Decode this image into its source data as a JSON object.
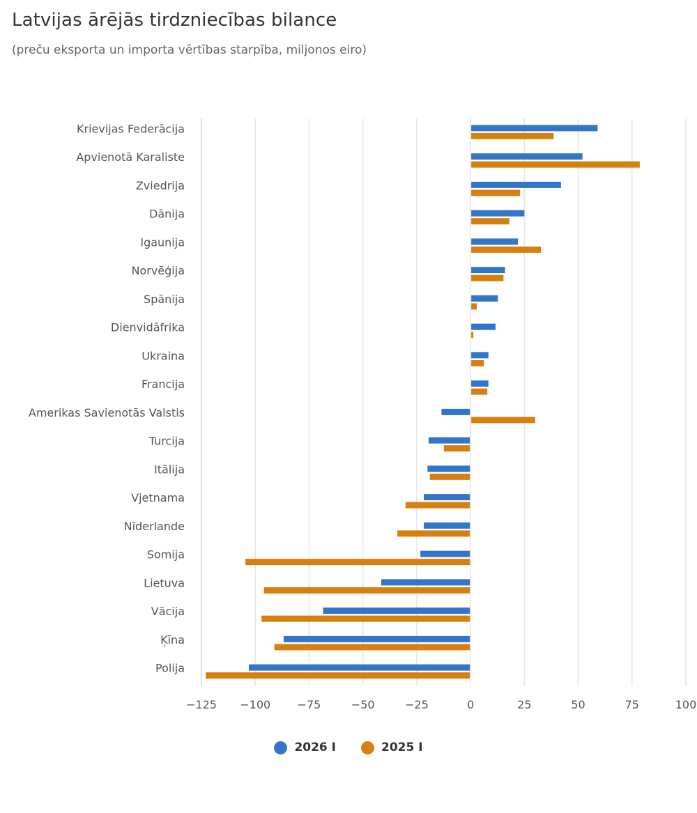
{
  "chart_data": {
    "type": "bar",
    "orientation": "horizontal",
    "title": "Latvijas ārējās tirdzniecības bilance",
    "subtitle": "(preču eksporta un importa vērtības starpība, miljonos eiro)",
    "xlabel": "",
    "ylabel": "",
    "xlim": [
      -125,
      100
    ],
    "x_ticks": [
      "−125",
      "−100",
      "−75",
      "−50",
      "−25",
      "0",
      "25",
      "50",
      "75",
      "100"
    ],
    "x_tick_values": [
      -125,
      -100,
      -75,
      -50,
      -25,
      0,
      25,
      50,
      75,
      100
    ],
    "grid": true,
    "legend_position": "bottom",
    "categories": [
      "Krievijas Federācija",
      "Apvienotā Karaliste",
      "Zviedrija",
      "Dānija",
      "Igaunija",
      "Norvēģija",
      "Spānija",
      "Dienvidāfrika",
      "Ukraina",
      "Francija",
      "Amerikas Savienotās Valstis",
      "Turcija",
      "Itālija",
      "Vjetnama",
      "Nīderlande",
      "Somija",
      "Lietuva",
      "Vācija",
      "Ķīna",
      "Polija"
    ],
    "series": [
      {
        "name": "2026 I",
        "color": "#3276c8",
        "values": [
          59,
          52,
          42,
          25,
          22,
          16,
          12.7,
          11.6,
          8.3,
          8.3,
          -13.5,
          -19.5,
          -20,
          -21.7,
          -21.7,
          -23.3,
          -41.5,
          -68.5,
          -86.8,
          -103
        ]
      },
      {
        "name": "2025 I",
        "color": "#d68010",
        "values": [
          38.6,
          78.6,
          23,
          18,
          32.7,
          15.3,
          2.9,
          1.3,
          6.2,
          7.8,
          30,
          -12.4,
          -18.9,
          -30.2,
          -34,
          -104.6,
          -96,
          -97.1,
          -91.1,
          -123
        ]
      }
    ]
  }
}
